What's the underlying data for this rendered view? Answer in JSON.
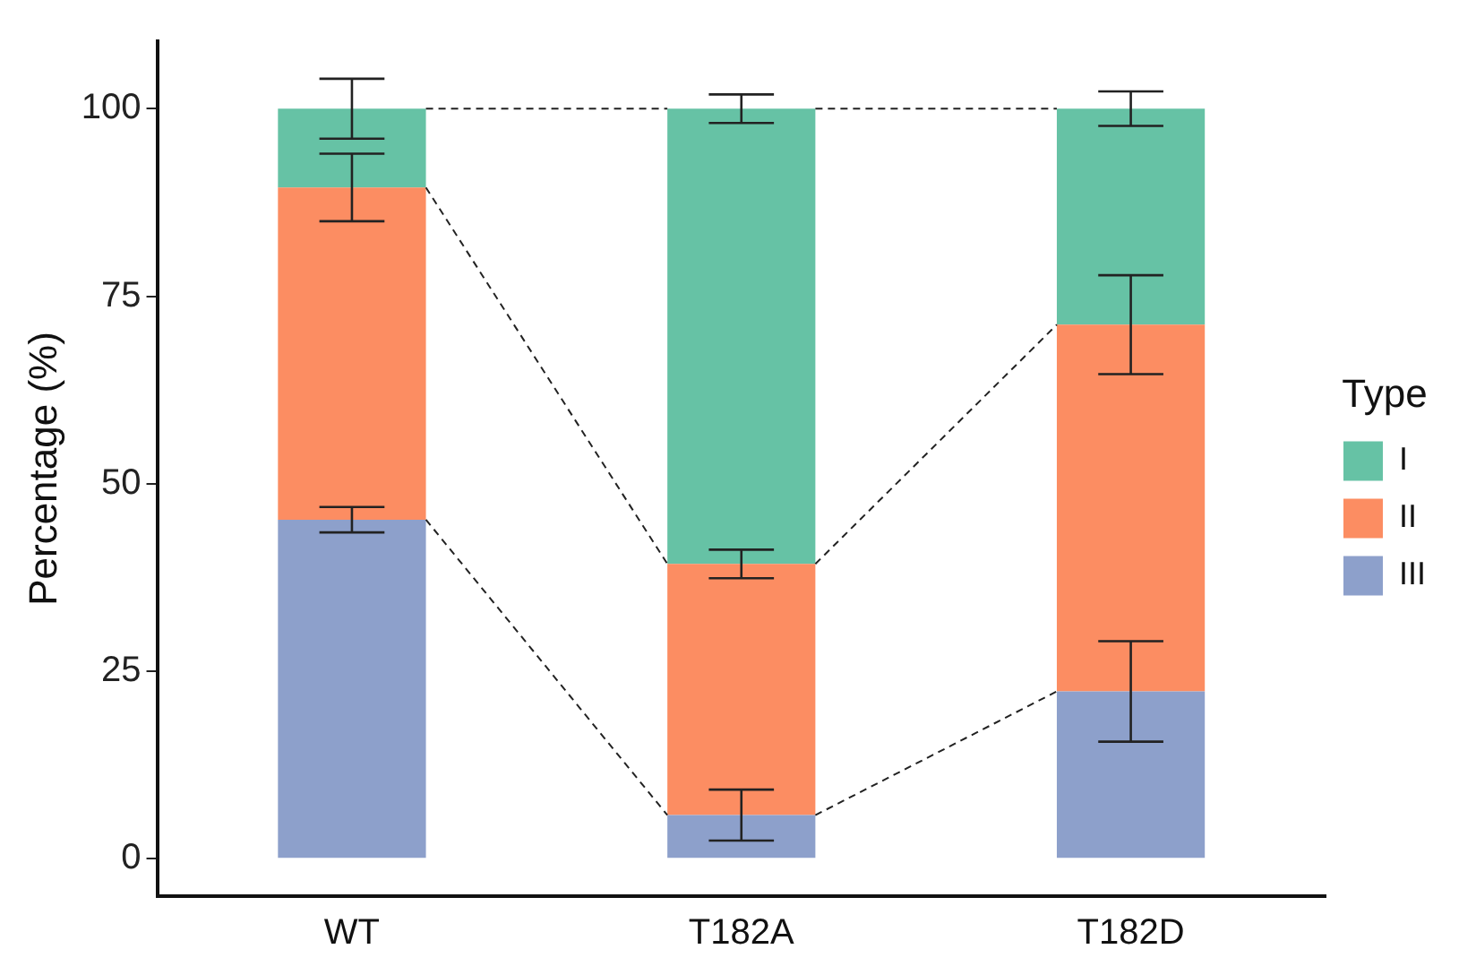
{
  "chart_data": {
    "type": "bar",
    "stacked": true,
    "ylabel": "Percentage (%)",
    "legend_title": "Type",
    "legend": "right",
    "categories": [
      "WT",
      "T182A",
      "T182D"
    ],
    "series": [
      {
        "name": "III",
        "color": "#8da0cb",
        "values": [
          45.2,
          5.8,
          22.3
        ],
        "errors": [
          1.7,
          3.4,
          6.7
        ]
      },
      {
        "name": "II",
        "color": "#fc8d62",
        "values": [
          44.3,
          33.5,
          48.9
        ],
        "errors": [
          4.5,
          1.9,
          6.6
        ]
      },
      {
        "name": "I",
        "color": "#66c2a5",
        "values": [
          10.5,
          60.7,
          28.8
        ],
        "errors": [
          4,
          1.9,
          2.3
        ]
      }
    ],
    "ylim": [
      -5,
      109
    ],
    "yticks": [
      0,
      25,
      50,
      75,
      100
    ],
    "grid": false
  }
}
